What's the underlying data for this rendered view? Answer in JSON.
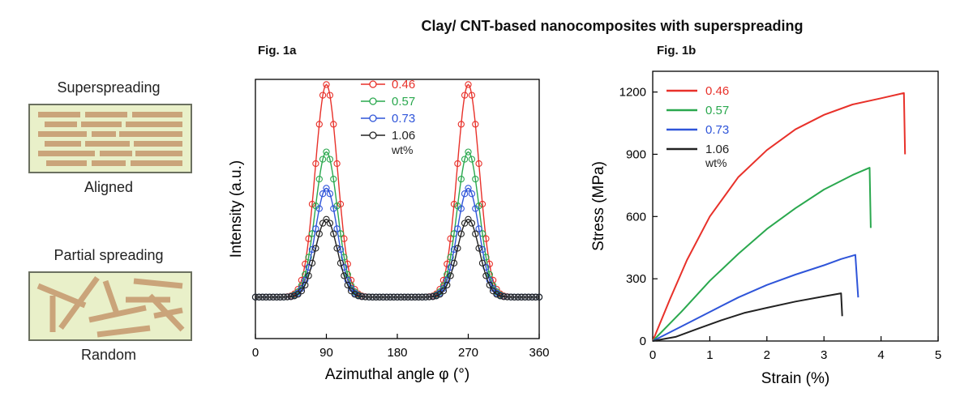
{
  "title": "Clay/ CNT-based nanocomposites with superspreading",
  "schematic": {
    "top_heading": "Superspreading",
    "top_caption": "Aligned",
    "bottom_heading": "Partial spreading",
    "bottom_caption": "Random",
    "colors": {
      "fill": "#e9f0c9",
      "border": "#6b7060",
      "platelet": "#caa47a"
    }
  },
  "chart_data": [
    {
      "type": "line",
      "fig_label": "Fig. 1a",
      "title": "",
      "xlabel": "Azimuthal angle φ (°)",
      "ylabel": "Intensity (a.u.)",
      "xlim": [
        0,
        360
      ],
      "ylim": [
        0,
        1
      ],
      "x_ticks": [
        "0",
        "90",
        "180",
        "270",
        "360"
      ],
      "grid": false,
      "legend": {
        "placement": "top-center",
        "unit": "wt%"
      },
      "marker": "open-circle",
      "peak_centers": [
        90,
        270
      ],
      "peak_sigma": 14,
      "baseline": 0.16,
      "series": [
        {
          "name": "0.46",
          "color": "#e8312a",
          "peak": 0.98
        },
        {
          "name": "0.57",
          "color": "#2aa84e",
          "peak": 0.72
        },
        {
          "name": "0.73",
          "color": "#2f55d9",
          "peak": 0.58
        },
        {
          "name": "1.06",
          "color": "#222222",
          "peak": 0.46
        }
      ]
    },
    {
      "type": "line",
      "fig_label": "Fig. 1b",
      "title": "",
      "xlabel": "Strain (%)",
      "ylabel": "Stress (MPa)",
      "xlim": [
        0,
        5
      ],
      "ylim": [
        0,
        1300
      ],
      "x_ticks": [
        0,
        1,
        2,
        3,
        4,
        5
      ],
      "y_ticks": [
        0,
        300,
        600,
        900,
        1200
      ],
      "grid": false,
      "legend": {
        "placement": "top-left",
        "unit": "wt%"
      },
      "series": [
        {
          "name": "0.46",
          "color": "#e8312a",
          "points": [
            [
              0,
              0
            ],
            [
              0.3,
              200
            ],
            [
              0.6,
              390
            ],
            [
              1.0,
              600
            ],
            [
              1.5,
              790
            ],
            [
              2.0,
              920
            ],
            [
              2.5,
              1020
            ],
            [
              3.0,
              1090
            ],
            [
              3.5,
              1140
            ],
            [
              4.0,
              1170
            ],
            [
              4.4,
              1195
            ],
            [
              4.42,
              900
            ]
          ]
        },
        {
          "name": "0.57",
          "color": "#2aa84e",
          "points": [
            [
              0,
              0
            ],
            [
              0.5,
              140
            ],
            [
              1.0,
              290
            ],
            [
              1.5,
              420
            ],
            [
              2.0,
              540
            ],
            [
              2.5,
              640
            ],
            [
              3.0,
              730
            ],
            [
              3.5,
              800
            ],
            [
              3.8,
              835
            ],
            [
              3.82,
              545
            ]
          ]
        },
        {
          "name": "0.73",
          "color": "#2f55d9",
          "points": [
            [
              0,
              0
            ],
            [
              0.5,
              70
            ],
            [
              1.0,
              140
            ],
            [
              1.5,
              210
            ],
            [
              2.0,
              270
            ],
            [
              2.5,
              320
            ],
            [
              3.0,
              365
            ],
            [
              3.3,
              395
            ],
            [
              3.55,
              415
            ],
            [
              3.6,
              210
            ]
          ]
        },
        {
          "name": "1.06",
          "color": "#222222",
          "points": [
            [
              0,
              0
            ],
            [
              0.4,
              20
            ],
            [
              0.8,
              60
            ],
            [
              1.2,
              100
            ],
            [
              1.6,
              135
            ],
            [
              2.0,
              160
            ],
            [
              2.5,
              190
            ],
            [
              3.0,
              215
            ],
            [
              3.3,
              230
            ],
            [
              3.32,
              120
            ]
          ]
        }
      ]
    }
  ]
}
